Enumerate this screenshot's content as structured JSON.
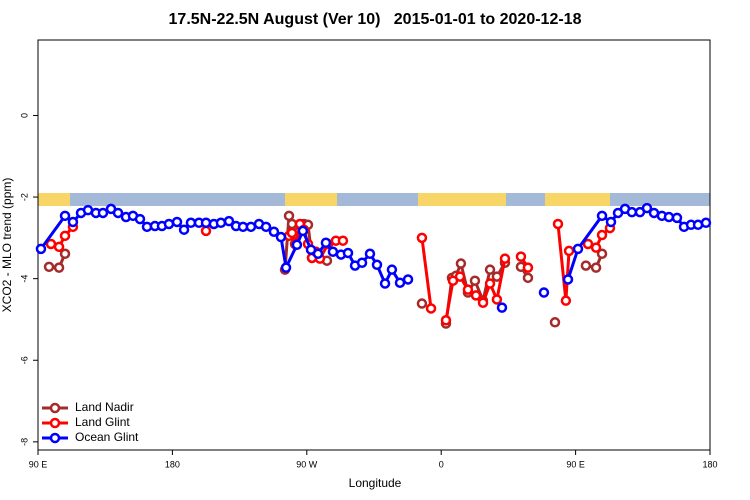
{
  "chart_data": {
    "type": "line",
    "title": "17.5N-22.5N August (Ver 10)   2015-01-01 to 2020-12-18",
    "xlabel": "Longitude",
    "ylabel": "XCO2 - MLO trend (ppm)",
    "xlim": [
      90,
      540
    ],
    "xticks": [
      {
        "value": 90,
        "label": "90 E"
      },
      180,
      {
        "value": 270,
        "label": "90 W"
      },
      {
        "value": 360,
        "label": "0"
      },
      {
        "value": 450,
        "label": "90 E"
      },
      180
    ],
    "ylim": [
      -8.2,
      1.85
    ],
    "yticks": [
      0,
      -2,
      -4,
      -6,
      -8
    ],
    "legend": "lower left",
    "series": [
      {
        "name": "Land Nadir",
        "color": "#a52a2a",
        "x": [
          97.4,
          104.1,
          108.1,
          null,
          255.4,
          258.1,
          260.1,
          262.1,
          264.8,
          268.1,
          270.8,
          273.5,
          278.2,
          283.5,
          null,
          347.1,
          null,
          363.2,
          367.2,
          369.9,
          373.2,
          377.9,
          382.6,
          388.0,
          392.7,
          397.3,
          402.7,
          null,
          413.4,
          418.1,
          null,
          436.2,
          null,
          456.9,
          463.7,
          467.7
        ],
        "values": [
          -3.71,
          -3.73,
          -3.39,
          null,
          -3.78,
          -2.46,
          -2.66,
          -3.15,
          -2.85,
          -2.66,
          -2.68,
          -3.49,
          -3.46,
          -3.56,
          null,
          -4.61,
          null,
          -5.1,
          -3.98,
          -3.93,
          -3.63,
          -4.34,
          -4.05,
          -4.54,
          -3.78,
          -3.95,
          -3.61,
          null,
          -3.71,
          -3.98,
          null,
          -5.07,
          null,
          -3.68,
          -3.73,
          -3.39
        ]
      },
      {
        "name": "Land Glint",
        "color": "#ff0000",
        "x": [
          98.7,
          104.1,
          108.1,
          113.4,
          null,
          202.5,
          null,
          258.1,
          260.1,
          262.8,
          265.4,
          268.1,
          270.8,
          273.5,
          276.1,
          278.8,
          284.2,
          289.5,
          294.2,
          null,
          347.1,
          353.2,
          null,
          363.2,
          367.9,
          372.6,
          377.9,
          383.3,
          388.0,
          392.7,
          397.3,
          402.7,
          null,
          413.4,
          418.1,
          null,
          438.2,
          443.5,
          445.6,
          null,
          458.3,
          463.7,
          467.7,
          473.0
        ],
        "values": [
          -3.15,
          -3.22,
          -2.95,
          -2.73,
          null,
          -2.83,
          null,
          -2.95,
          -2.88,
          -3.17,
          -2.66,
          -2.8,
          -3.15,
          -3.49,
          -3.34,
          -3.51,
          -3.15,
          -3.07,
          -3.07,
          null,
          -3.0,
          -4.73,
          null,
          -5.02,
          -4.05,
          -3.95,
          -4.27,
          -4.41,
          -4.59,
          -4.12,
          -4.51,
          -3.51,
          null,
          -3.46,
          -3.73,
          null,
          -2.66,
          -4.54,
          -3.32,
          null,
          -3.15,
          -3.24,
          -2.93,
          -2.76
        ]
      },
      {
        "name": "Ocean Glint",
        "color": "#0000ff",
        "x": [
          92.0,
          108.1,
          113.4,
          118.8,
          123.5,
          128.8,
          133.5,
          138.9,
          143.6,
          148.9,
          153.6,
          158.3,
          163.0,
          168.3,
          173.0,
          177.7,
          183.1,
          187.8,
          192.4,
          197.8,
          202.5,
          207.8,
          212.5,
          217.9,
          222.6,
          227.3,
          232.6,
          238.0,
          242.7,
          248.0,
          252.7,
          256.1,
          263.4,
          267.4,
          272.8,
          277.5,
          282.8,
          287.5,
          292.9,
          297.6,
          302.3,
          307.0,
          312.3,
          317.0,
          322.4,
          327.0,
          332.4,
          337.8,
          null,
          400.7,
          null,
          428.8,
          null,
          444.9,
          451.6,
          467.7,
          473.7,
          478.4,
          483.1,
          487.7,
          493.1,
          497.8,
          502.5,
          507.8,
          512.5,
          517.9,
          522.6,
          527.3,
          532.0,
          537.3
        ],
        "values": [
          -3.27,
          -2.46,
          -2.61,
          -2.39,
          -2.32,
          -2.39,
          -2.39,
          -2.29,
          -2.39,
          -2.49,
          -2.46,
          -2.54,
          -2.73,
          -2.71,
          -2.71,
          -2.66,
          -2.61,
          -2.8,
          -2.63,
          -2.63,
          -2.63,
          -2.66,
          -2.63,
          -2.59,
          -2.71,
          -2.73,
          -2.73,
          -2.66,
          -2.73,
          -2.85,
          -2.98,
          -3.73,
          -3.17,
          -2.83,
          -3.29,
          -3.39,
          -3.12,
          -3.34,
          -3.41,
          -3.37,
          -3.68,
          -3.61,
          -3.39,
          -3.66,
          -4.12,
          -3.78,
          -4.1,
          -4.02,
          null,
          -4.71,
          null,
          -4.34,
          null,
          -4.02,
          -3.27,
          -2.46,
          -2.61,
          -2.39,
          -2.29,
          -2.37,
          -2.37,
          -2.27,
          -2.39,
          -2.46,
          -2.49,
          -2.51,
          -2.73,
          -2.68,
          -2.68,
          -2.63
        ]
      }
    ]
  }
}
